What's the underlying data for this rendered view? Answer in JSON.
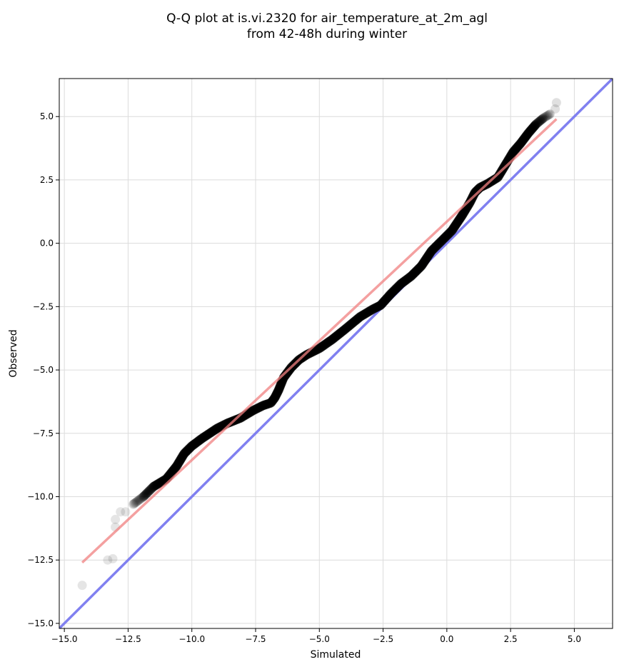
{
  "chart_data": {
    "type": "scatter",
    "title_lines": [
      "Q-Q plot at is.vi.2320 for air_temperature_at_2m_agl",
      "from 42-48h during winter"
    ],
    "xlabel": "Simulated",
    "ylabel": "Observed",
    "xlim": [
      -15.2,
      6.5
    ],
    "ylim": [
      -15.2,
      6.5
    ],
    "x_ticks": [
      -15.0,
      -12.5,
      -10.0,
      -7.5,
      -5.0,
      -2.5,
      0.0,
      2.5,
      5.0
    ],
    "y_ticks": [
      -15.0,
      -12.5,
      -10.0,
      -7.5,
      -5.0,
      -2.5,
      0.0,
      2.5,
      5.0
    ],
    "x_tick_labels": [
      "−15.0",
      "−12.5",
      "−10.0",
      "−7.5",
      "−5.0",
      "−2.5",
      "0.0",
      "2.5",
      "5.0"
    ],
    "y_tick_labels": [
      "−15.0",
      "−12.5",
      "−10.0",
      "−7.5",
      "−5.0",
      "−2.5",
      "0.0",
      "2.5",
      "5.0"
    ],
    "grid": true,
    "colors": {
      "points": "#000000",
      "fit_line": "#f08080",
      "identity_line": "#8080f0"
    },
    "fit_line": {
      "x": [
        -14.3,
        4.3
      ],
      "y": [
        -12.6,
        4.9
      ]
    },
    "identity_line": {
      "x": [
        -15.2,
        6.5
      ],
      "y": [
        -15.2,
        6.5
      ]
    },
    "outliers": {
      "x": [
        -14.3,
        -13.3,
        -13.1,
        -13.0,
        -13.0,
        -12.8,
        -12.6
      ],
      "y": [
        -13.5,
        -12.5,
        -12.45,
        -11.2,
        -10.9,
        -10.6,
        -10.6
      ]
    },
    "curve": {
      "x": [
        -12.3,
        -11.9,
        -11.5,
        -11.0,
        -10.6,
        -10.3,
        -10.0,
        -9.6,
        -9.0,
        -8.6,
        -8.1,
        -7.6,
        -7.2,
        -6.9,
        -6.75,
        -6.6,
        -6.4,
        -6.1,
        -5.8,
        -5.5,
        -5.0,
        -4.5,
        -4.0,
        -3.4,
        -2.9,
        -2.6,
        -2.2,
        -1.8,
        -1.4,
        -1.0,
        -0.6,
        -0.2,
        0.2,
        0.6,
        0.9,
        1.1,
        1.3,
        1.6,
        2.0,
        2.3,
        2.6,
        2.9,
        3.2,
        3.5,
        3.8,
        4.05
      ],
      "y": [
        -10.3,
        -10.0,
        -9.6,
        -9.3,
        -8.8,
        -8.3,
        -8.0,
        -7.7,
        -7.3,
        -7.1,
        -6.9,
        -6.6,
        -6.4,
        -6.3,
        -6.1,
        -5.8,
        -5.3,
        -4.9,
        -4.6,
        -4.4,
        -4.15,
        -3.8,
        -3.4,
        -2.9,
        -2.6,
        -2.45,
        -2.0,
        -1.6,
        -1.3,
        -0.9,
        -0.3,
        0.1,
        0.5,
        1.1,
        1.6,
        2.0,
        2.2,
        2.35,
        2.6,
        3.1,
        3.6,
        3.95,
        4.35,
        4.7,
        4.95,
        5.1
      ]
    },
    "top_points": {
      "x": [
        4.25,
        4.3
      ],
      "y": [
        5.3,
        5.55
      ]
    }
  }
}
